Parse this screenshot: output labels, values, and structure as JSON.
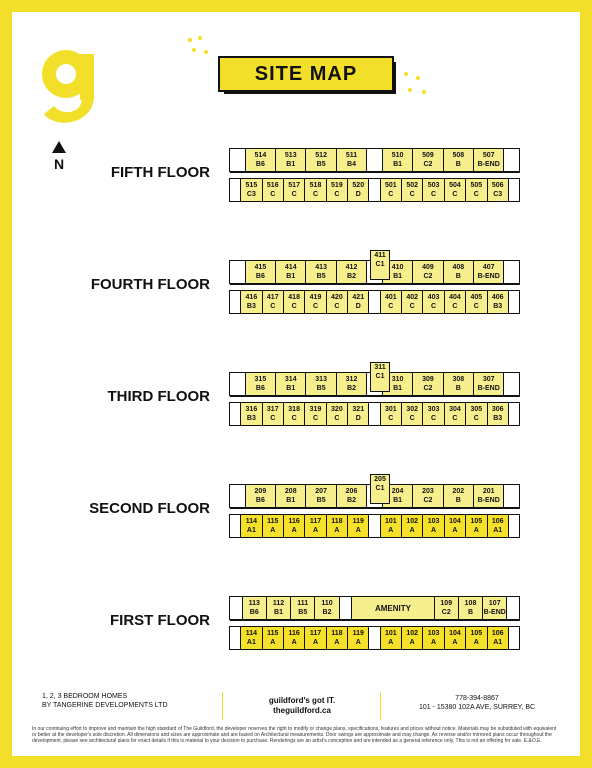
{
  "title": "SITE MAP",
  "north_label": "N",
  "floors": [
    {
      "label": "FIFTH FLOOR",
      "top": [
        {
          "n": "514",
          "t": "B6"
        },
        {
          "n": "513",
          "t": "B1"
        },
        {
          "n": "512",
          "t": "B5"
        },
        {
          "n": "511",
          "t": "B4"
        },
        {
          "n": "510",
          "t": "B1"
        },
        {
          "n": "509",
          "t": "C2"
        },
        {
          "n": "508",
          "t": "B"
        },
        {
          "n": "507",
          "t": "B-END"
        }
      ],
      "core": {
        "n": "",
        "t": ""
      },
      "bottom": [
        {
          "n": "515",
          "t": "C3"
        },
        {
          "n": "516",
          "t": "C"
        },
        {
          "n": "517",
          "t": "C"
        },
        {
          "n": "518",
          "t": "C"
        },
        {
          "n": "519",
          "t": "C"
        },
        {
          "n": "520",
          "t": "D"
        },
        {
          "n": "501",
          "t": "C"
        },
        {
          "n": "502",
          "t": "C"
        },
        {
          "n": "503",
          "t": "C"
        },
        {
          "n": "504",
          "t": "C"
        },
        {
          "n": "505",
          "t": "C"
        },
        {
          "n": "506",
          "t": "C3"
        }
      ]
    },
    {
      "label": "FOURTH FLOOR",
      "top": [
        {
          "n": "415",
          "t": "B6"
        },
        {
          "n": "414",
          "t": "B1"
        },
        {
          "n": "413",
          "t": "B5"
        },
        {
          "n": "412",
          "t": "B2"
        },
        {
          "n": "410",
          "t": "B1"
        },
        {
          "n": "409",
          "t": "C2"
        },
        {
          "n": "408",
          "t": "B"
        },
        {
          "n": "407",
          "t": "B-END"
        }
      ],
      "core": {
        "n": "411",
        "t": "C1"
      },
      "bottom": [
        {
          "n": "416",
          "t": "B3"
        },
        {
          "n": "417",
          "t": "C"
        },
        {
          "n": "418",
          "t": "C"
        },
        {
          "n": "419",
          "t": "C"
        },
        {
          "n": "420",
          "t": "C"
        },
        {
          "n": "421",
          "t": "D"
        },
        {
          "n": "401",
          "t": "C"
        },
        {
          "n": "402",
          "t": "C"
        },
        {
          "n": "403",
          "t": "C"
        },
        {
          "n": "404",
          "t": "C"
        },
        {
          "n": "405",
          "t": "C"
        },
        {
          "n": "406",
          "t": "B3"
        }
      ]
    },
    {
      "label": "THIRD FLOOR",
      "top": [
        {
          "n": "315",
          "t": "B6"
        },
        {
          "n": "314",
          "t": "B1"
        },
        {
          "n": "313",
          "t": "B5"
        },
        {
          "n": "312",
          "t": "B2"
        },
        {
          "n": "310",
          "t": "B1"
        },
        {
          "n": "309",
          "t": "C2"
        },
        {
          "n": "308",
          "t": "B"
        },
        {
          "n": "307",
          "t": "B-END"
        }
      ],
      "core": {
        "n": "311",
        "t": "C1"
      },
      "bottom": [
        {
          "n": "316",
          "t": "B3"
        },
        {
          "n": "317",
          "t": "C"
        },
        {
          "n": "318",
          "t": "C"
        },
        {
          "n": "319",
          "t": "C"
        },
        {
          "n": "320",
          "t": "C"
        },
        {
          "n": "321",
          "t": "D"
        },
        {
          "n": "301",
          "t": "C"
        },
        {
          "n": "302",
          "t": "C"
        },
        {
          "n": "303",
          "t": "C"
        },
        {
          "n": "304",
          "t": "C"
        },
        {
          "n": "305",
          "t": "C"
        },
        {
          "n": "306",
          "t": "B3"
        }
      ]
    },
    {
      "label": "SECOND FLOOR",
      "top": [
        {
          "n": "209",
          "t": "B6"
        },
        {
          "n": "208",
          "t": "B1"
        },
        {
          "n": "207",
          "t": "B5"
        },
        {
          "n": "206",
          "t": "B2"
        },
        {
          "n": "204",
          "t": "B1"
        },
        {
          "n": "203",
          "t": "C2"
        },
        {
          "n": "202",
          "t": "B"
        },
        {
          "n": "201",
          "t": "B-END"
        }
      ],
      "core": {
        "n": "205",
        "t": "C1"
      },
      "bottom": [
        {
          "n": "114",
          "t": "A1"
        },
        {
          "n": "115",
          "t": "A"
        },
        {
          "n": "116",
          "t": "A"
        },
        {
          "n": "117",
          "t": "A"
        },
        {
          "n": "118",
          "t": "A"
        },
        {
          "n": "119",
          "t": "A"
        },
        {
          "n": "101",
          "t": "A"
        },
        {
          "n": "102",
          "t": "A"
        },
        {
          "n": "103",
          "t": "A"
        },
        {
          "n": "104",
          "t": "A"
        },
        {
          "n": "105",
          "t": "A"
        },
        {
          "n": "106",
          "t": "A1"
        }
      ]
    },
    {
      "label": "FIRST FLOOR",
      "top": [
        {
          "n": "113",
          "t": "B6"
        },
        {
          "n": "112",
          "t": "B1"
        },
        {
          "n": "111",
          "t": "B5"
        },
        {
          "n": "110",
          "t": "B2"
        },
        {
          "n": "",
          "t": "AMENITY"
        },
        {
          "n": "109",
          "t": "C2"
        },
        {
          "n": "108",
          "t": "B"
        },
        {
          "n": "107",
          "t": "B-END"
        }
      ],
      "core": {
        "n": "",
        "t": ""
      },
      "bottom": [
        {
          "n": "114",
          "t": "A1"
        },
        {
          "n": "115",
          "t": "A"
        },
        {
          "n": "116",
          "t": "A"
        },
        {
          "n": "117",
          "t": "A"
        },
        {
          "n": "118",
          "t": "A"
        },
        {
          "n": "119",
          "t": "A"
        },
        {
          "n": "101",
          "t": "A"
        },
        {
          "n": "102",
          "t": "A"
        },
        {
          "n": "103",
          "t": "A"
        },
        {
          "n": "104",
          "t": "A"
        },
        {
          "n": "105",
          "t": "A"
        },
        {
          "n": "106",
          "t": "A1"
        }
      ]
    }
  ],
  "footer": {
    "left_line1": "1, 2, 3 BEDROOM HOMES",
    "left_line2": "BY TANGERINE DEVELOPMENTS LTD",
    "mid_line1": "guildford's got IT.",
    "mid_line2": "theguildford.ca",
    "right_line1": "778-394-8867",
    "right_line2": "101 - 15380 102A AVE, SURREY, BC"
  },
  "disclaimer": "In our continuing effort to improve and maintain the high standard of The Guildford, the developer reserves the right to modify or change plans, specifications, features and prices without notice. Materials may be substituted with equivalent or better at the developer's sole discretion. All dimensions and sizes are approximate and are based on Architectural measurements. Door swings are approximate and may change. As reverse and/or mirrored plans occur throughout the development, please see architectural plans for exact details if this is material to your decision to purchase. Renderings are an artist's conception and are intended as a general reference only. This is not an offering for sale. E.&O.E.",
  "colors": {
    "brand_yellow": "#f2df2a",
    "unit_fill": "#f7ef8e",
    "unit_bright": "#f5e02a"
  }
}
